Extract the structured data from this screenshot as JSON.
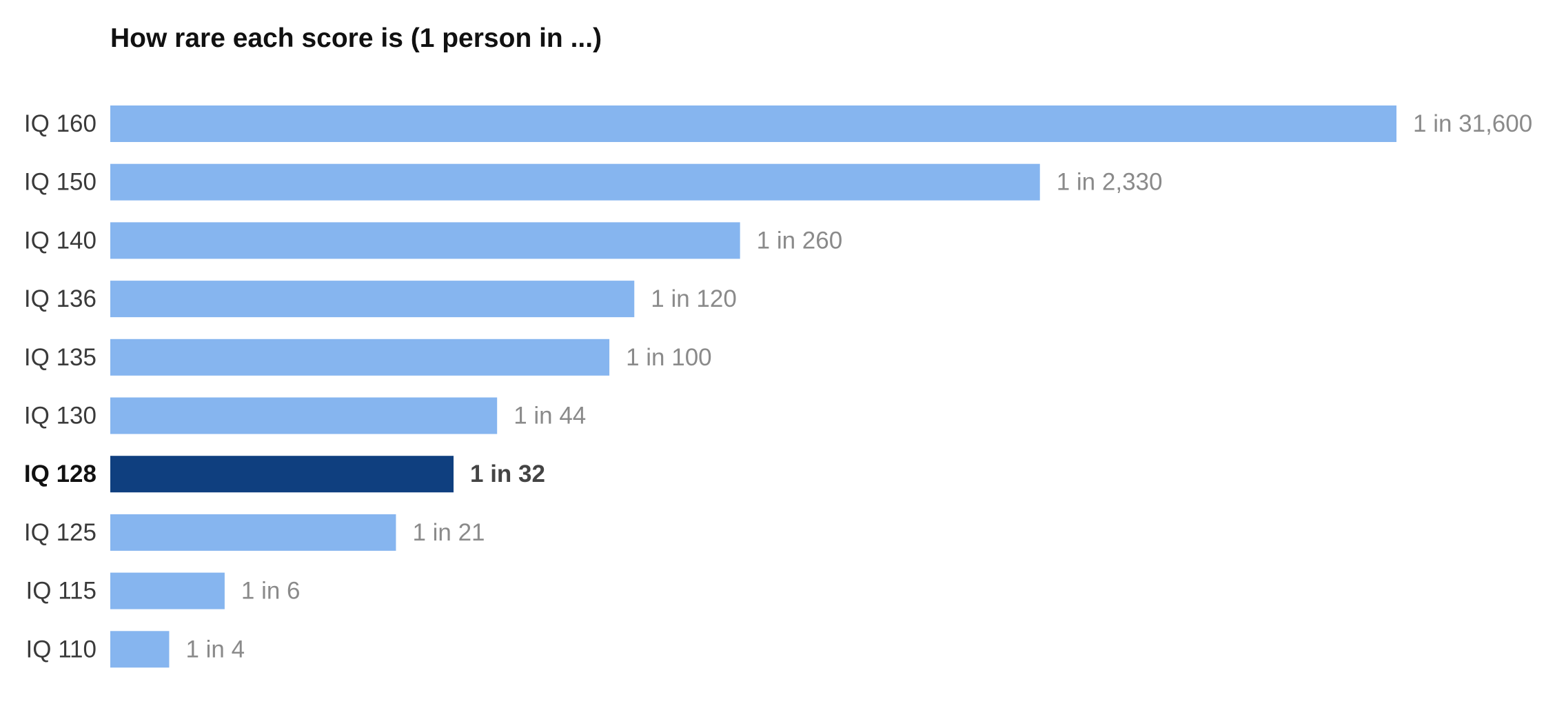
{
  "chart_data": {
    "type": "bar",
    "orientation": "horizontal",
    "title": "How rare each score is (1 person in ...)",
    "xlabel": "",
    "ylabel": "",
    "categories": [
      "IQ 160",
      "IQ 150",
      "IQ 140",
      "IQ 136",
      "IQ 135",
      "IQ 130",
      "IQ 128",
      "IQ 125",
      "IQ 115",
      "IQ 110"
    ],
    "value_labels": [
      "1 in 31,600",
      "1 in 2,330",
      "1 in 260",
      "1 in 120",
      "1 in 100",
      "1 in 44",
      "1 in 32",
      "1 in 21",
      "1 in 6",
      "1 in 4"
    ],
    "values": [
      31600,
      2330,
      260,
      120,
      100,
      44,
      32,
      21,
      6,
      4
    ],
    "x_scale": "log",
    "xlim": [
      2.6,
      31600
    ],
    "grid": false,
    "legend": "none",
    "highlight_category": "IQ 128",
    "colors": {
      "bar": "#86b5ef",
      "highlight_bar": "#0f3f7f"
    }
  }
}
